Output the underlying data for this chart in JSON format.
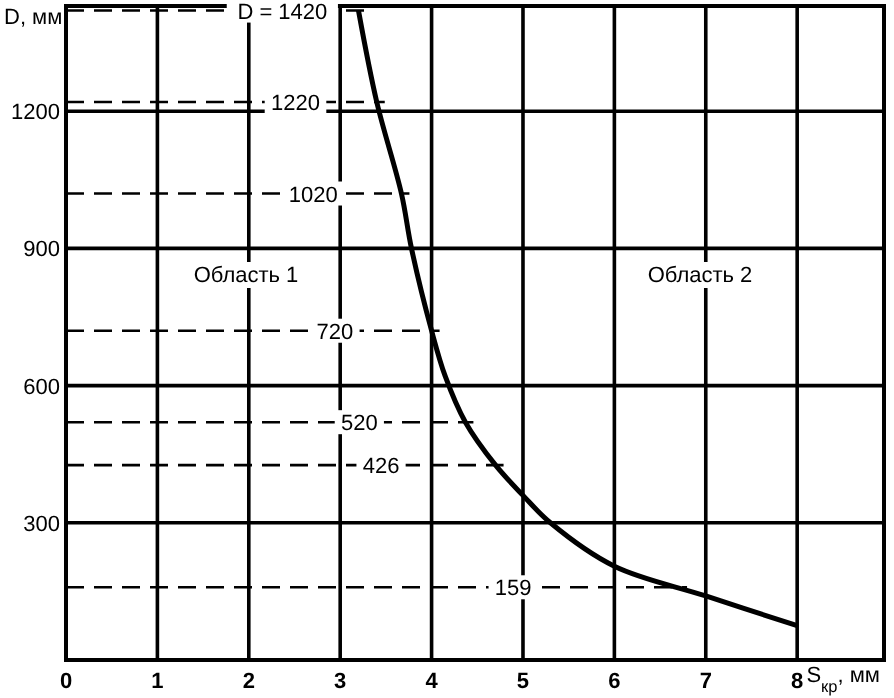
{
  "chart_data": {
    "type": "line",
    "xlabel": "S$_{кр}$, мм",
    "ylabel": "D, мм",
    "xlim": [
      0,
      8.95
    ],
    "ylim": [
      0,
      1430
    ],
    "xticks": [
      0,
      1,
      2,
      3,
      4,
      5,
      6,
      7,
      8
    ],
    "yticks": [
      {
        "value": 0,
        "label": null
      },
      300,
      600,
      900,
      1200
    ],
    "grid": true,
    "marker": "none",
    "line_style": "solid",
    "series": [
      {
        "color": "#000000",
        "x": [
          3.2,
          3.4,
          3.67,
          3.78,
          4.0,
          4.15,
          4.37,
          4.7,
          5.0,
          5.3,
          6.0,
          7.0,
          8.0
        ],
        "values": [
          1420,
          1220,
          1020,
          900,
          720,
          620,
          520,
          426,
          360,
          300,
          205,
          140,
          75
        ]
      }
    ],
    "ref_lines": [
      {
        "axis": "y",
        "value": 1420,
        "label": "D = 1420",
        "color": "#000000",
        "line_style": "dashed"
      },
      {
        "axis": "y",
        "value": 1220,
        "label": "1220",
        "color": "#000000",
        "line_style": "dashed"
      },
      {
        "axis": "y",
        "value": 1020,
        "label": "1020",
        "color": "#000000",
        "line_style": "dashed"
      },
      {
        "axis": "y",
        "value": 720,
        "label": "720",
        "color": "#000000",
        "line_style": "dashed"
      },
      {
        "axis": "y",
        "value": 520,
        "label": "520",
        "color": "#000000",
        "line_style": "dashed"
      },
      {
        "axis": "y",
        "value": 426,
        "label": "426",
        "color": "#000000",
        "line_style": "dashed"
      },
      {
        "axis": "y",
        "value": 159,
        "label": "159",
        "color": "#000000",
        "line_style": "dashed"
      }
    ],
    "annotations": [
      "Область 1",
      "Область 2"
    ]
  }
}
